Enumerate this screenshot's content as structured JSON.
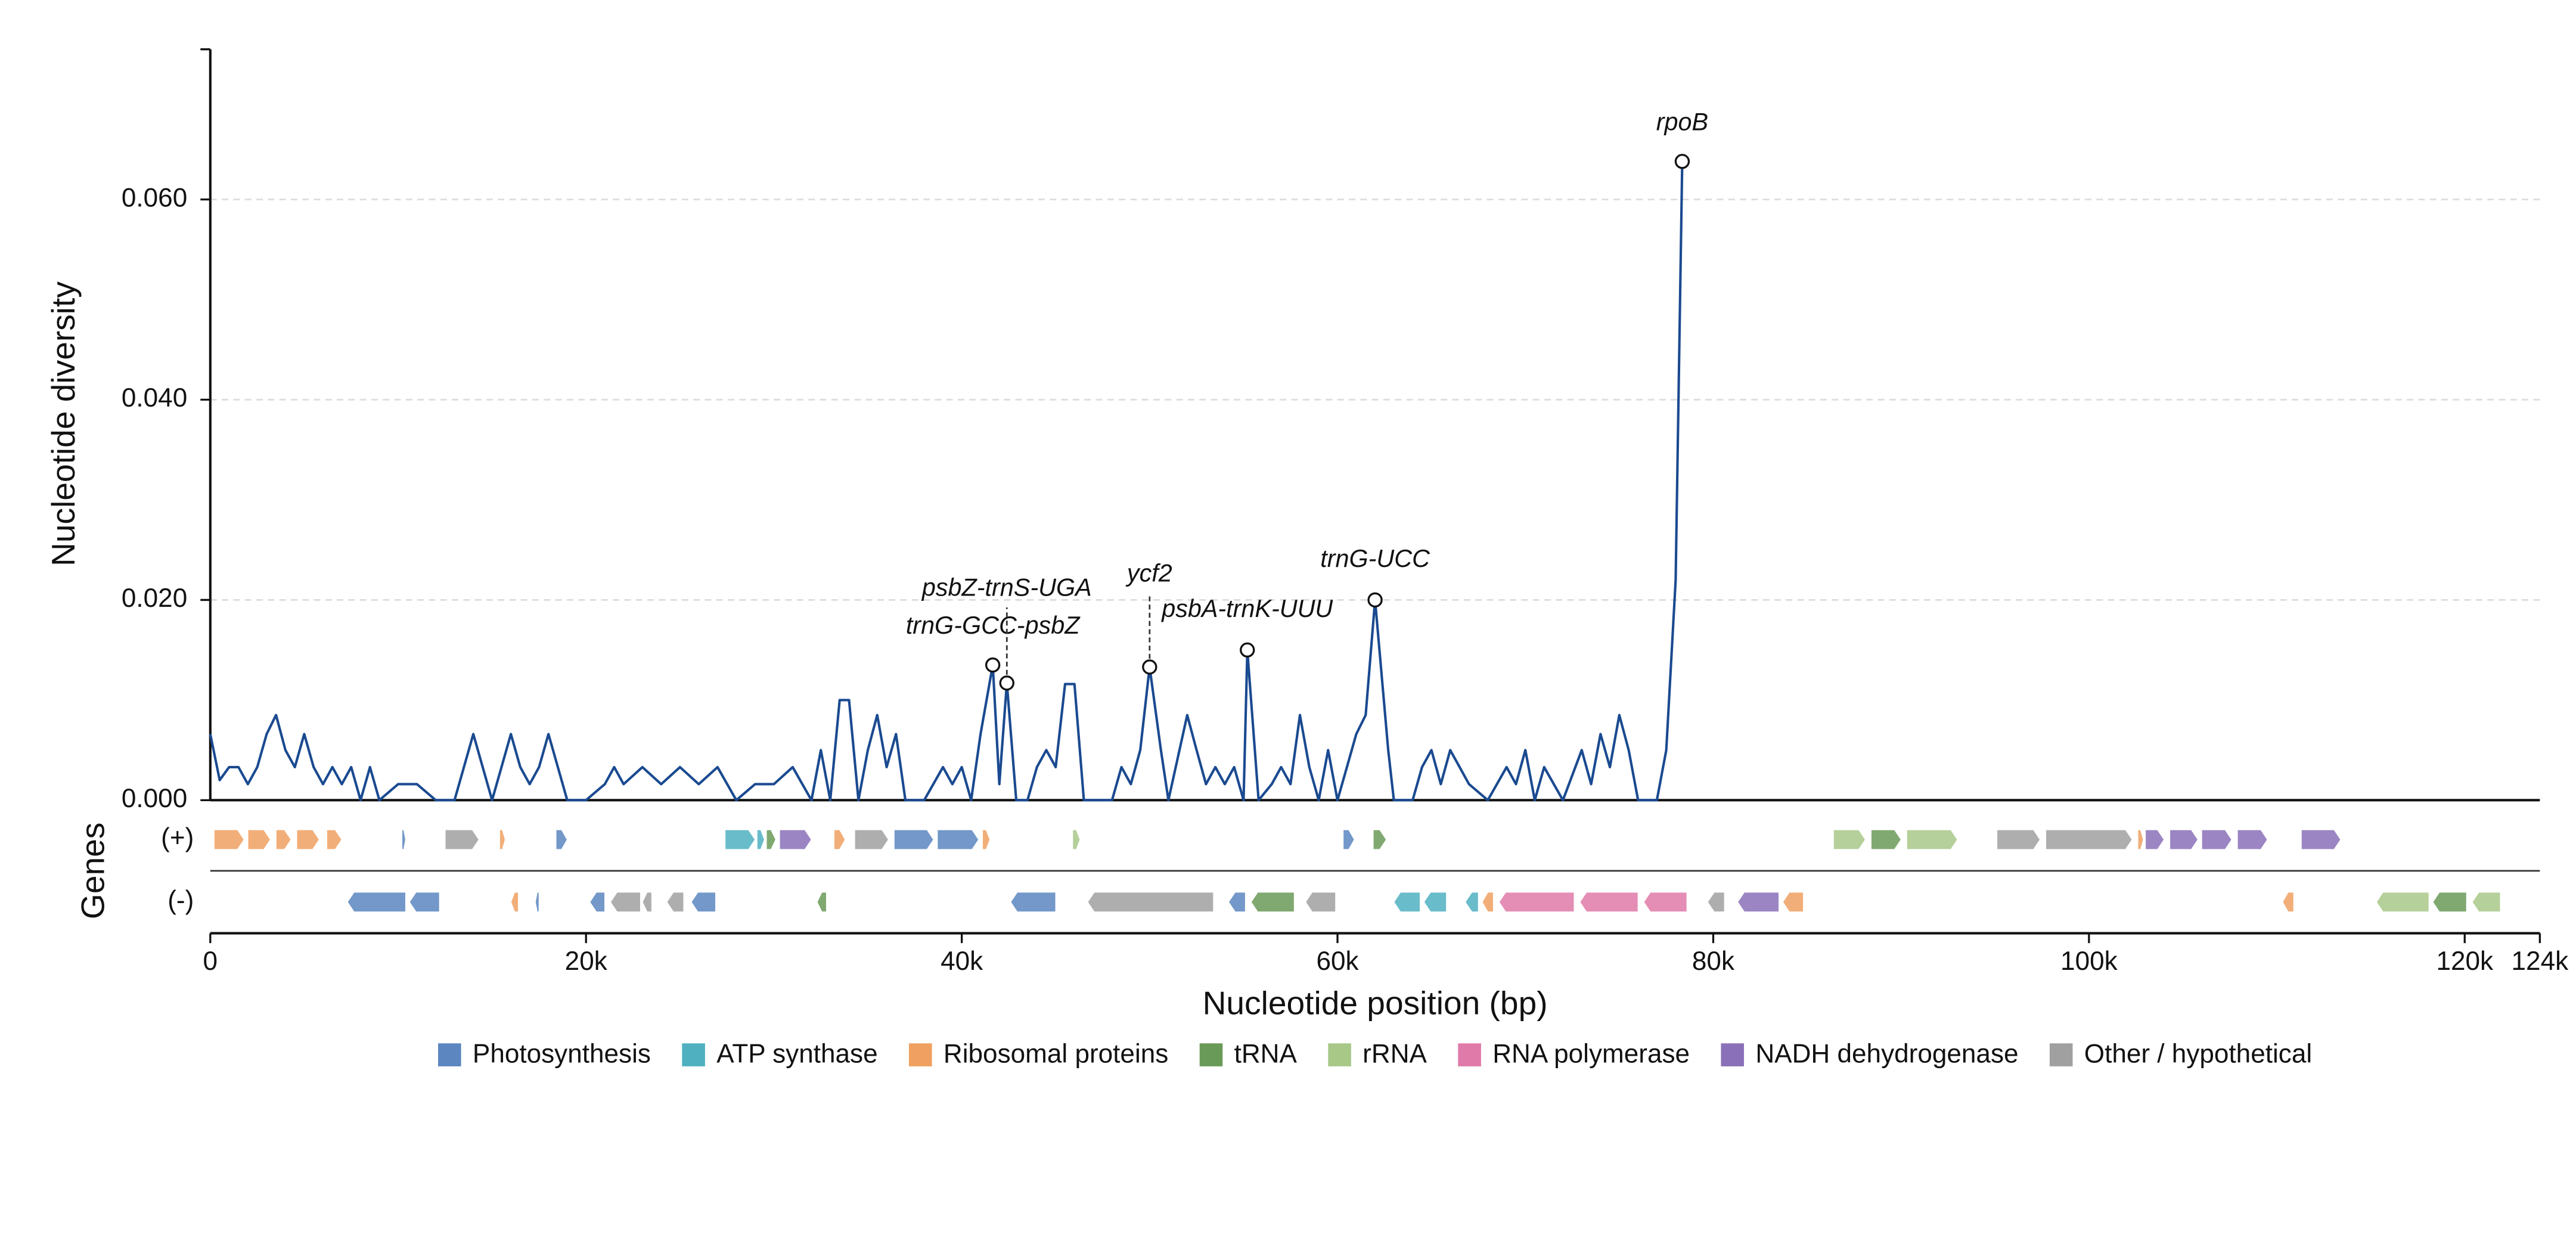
{
  "chart_data": {
    "type": "line",
    "ylabel": "Nucleotide diversity",
    "xlabel": "Nucleotide position (bp)",
    "track_title": "Genes",
    "xlim": [
      0,
      124000
    ],
    "ylim": [
      0,
      0.075
    ],
    "xticks": [
      0,
      {
        "value": 20000,
        "label": "20k"
      },
      {
        "value": 40000,
        "label": "40k"
      },
      {
        "value": 60000,
        "label": "60k"
      },
      {
        "value": 80000,
        "label": "80k"
      },
      {
        "value": 100000,
        "label": "100k"
      },
      {
        "value": 120000,
        "label": "120k"
      },
      {
        "value": 124000,
        "label": "124k"
      }
    ],
    "yticks": [
      {
        "value": 0,
        "label": "0.000"
      },
      {
        "value": 0.02,
        "label": "0.020"
      },
      {
        "value": 0.04,
        "label": "0.040"
      },
      {
        "value": 0.06,
        "label": "0.060"
      }
    ],
    "grid": true,
    "series": [
      {
        "color": "#1a4a90",
        "x": [
          0,
          500,
          1000,
          1500,
          2000,
          2500,
          3000,
          3500,
          4000,
          4500,
          5000,
          5500,
          6000,
          6500,
          7000,
          7500,
          8000,
          8500,
          9000,
          10000,
          11000,
          12000,
          13000,
          13500,
          14000,
          14500,
          15000,
          15500,
          16000,
          16500,
          17000,
          17500,
          18000,
          18500,
          19000,
          20000,
          21000,
          21500,
          22000,
          23000,
          24000,
          25000,
          26000,
          27000,
          28000,
          29000,
          30000,
          31000,
          32000,
          32500,
          33000,
          33500,
          34000,
          34500,
          35000,
          35500,
          36000,
          36500,
          37000,
          38000,
          39000,
          39500,
          40000,
          40500,
          41000,
          41650,
          42000,
          42400,
          42900,
          43500,
          44000,
          44500,
          45000,
          45500,
          46000,
          46500,
          48000,
          48500,
          49000,
          49500,
          50000,
          50600,
          51000,
          52000,
          52500,
          53000,
          53500,
          54000,
          54500,
          55000,
          55200,
          55800,
          56500,
          57000,
          57500,
          58000,
          58500,
          59000,
          59500,
          60000,
          60500,
          61000,
          61500,
          62000,
          62700,
          63000,
          64000,
          64500,
          65000,
          65500,
          66000,
          66500,
          67000,
          68000,
          69000,
          69500,
          70000,
          70500,
          71000,
          72000,
          73000,
          73500,
          74000,
          74500,
          75000,
          75500,
          76000,
          77000,
          77500,
          78000,
          78350
        ],
        "values": [
          0.0066,
          0.002,
          0.0033,
          0.0033,
          0.0016,
          0.0033,
          0.0066,
          0.0085,
          0.005,
          0.0033,
          0.0066,
          0.0033,
          0.0016,
          0.0033,
          0.0016,
          0.0033,
          0,
          0.0033,
          0,
          0.0016,
          0.0016,
          0,
          0,
          0.0033,
          0.0066,
          0.0033,
          0,
          0.0033,
          0.0066,
          0.0033,
          0.0016,
          0.0033,
          0.0066,
          0.0033,
          0,
          0,
          0.0016,
          0.0033,
          0.0016,
          0.0033,
          0.0016,
          0.0033,
          0.0016,
          0.0033,
          0,
          0.0016,
          0.0016,
          0.0033,
          0,
          0.005,
          0,
          0.01,
          0.01,
          0,
          0.005,
          0.0085,
          0.0033,
          0.0066,
          0,
          0,
          0.0033,
          0.0016,
          0.0033,
          0,
          0.0066,
          0.0135,
          0.0016,
          0.0117,
          0,
          0,
          0.0033,
          0.005,
          0.0033,
          0.0116,
          0.0116,
          0,
          0,
          0.0033,
          0.0016,
          0.005,
          0.0133,
          0.005,
          0,
          0.0085,
          0.005,
          0.0016,
          0.0033,
          0.0016,
          0.0033,
          0,
          0.015,
          0,
          0.0016,
          0.0033,
          0.0016,
          0.0085,
          0.0033,
          0,
          0.005,
          0,
          0.0033,
          0.0066,
          0.0085,
          0.02,
          0.005,
          0,
          0,
          0.0033,
          0.005,
          0.0016,
          0.005,
          0.0033,
          0.0016,
          0,
          0.0033,
          0.0016,
          0.005,
          0,
          0.0033,
          0,
          0.005,
          0.0016,
          0.0066,
          0.0033,
          0.0085,
          0.005,
          0,
          0,
          0.005,
          0.022,
          0.0638
        ]
      }
    ],
    "annotations": [
      {
        "label": "trnG-GCC-psbZ",
        "x": 41650,
        "y": 0.0135
      },
      {
        "label": "psbZ-trnS-UGA",
        "x": 42400,
        "y": 0.0117
      },
      {
        "label": "ycf2",
        "x": 50000,
        "y": 0.0133
      },
      {
        "label": "psbA-trnK-UUU",
        "x": 55200,
        "y": 0.015
      },
      {
        "label": "trnG-UCC",
        "x": 62000,
        "y": 0.02
      },
      {
        "label": "rpoB",
        "x": 78350,
        "y": 0.0638
      }
    ],
    "legend": [
      {
        "name": "Photosynthesis",
        "color": "#5b86c0"
      },
      {
        "name": "ATP synthase",
        "color": "#4fb0c0"
      },
      {
        "name": "Ribosomal proteins",
        "color": "#f0a060"
      },
      {
        "name": "tRNA",
        "color": "#6a9a58"
      },
      {
        "name": "rRNA",
        "color": "#a8c888"
      },
      {
        "name": "RNA polymerase",
        "color": "#e07aa8"
      },
      {
        "name": "NADH dehydrogenase",
        "color": "#8a70b8"
      },
      {
        "name": "Other / hypothetical",
        "color": "#a0a0a0"
      }
    ],
    "tracks": [
      {
        "label": "(+)",
        "genes": [
          {
            "start": 200,
            "end": 1800,
            "category": "Ribosomal proteins"
          },
          {
            "start": 2000,
            "end": 3200,
            "category": "Ribosomal proteins"
          },
          {
            "start": 3500,
            "end": 4300,
            "category": "Ribosomal proteins"
          },
          {
            "start": 4600,
            "end": 5800,
            "category": "Ribosomal proteins"
          },
          {
            "start": 6200,
            "end": 7000,
            "category": "Ribosomal proteins"
          },
          {
            "start": 10200,
            "end": 10400,
            "category": "Photosynthesis"
          },
          {
            "start": 12500,
            "end": 14300,
            "category": "Other / hypothetical"
          },
          {
            "start": 15400,
            "end": 15700,
            "category": "Ribosomal proteins"
          },
          {
            "start": 18400,
            "end": 19000,
            "category": "Photosynthesis"
          },
          {
            "start": 27400,
            "end": 29000,
            "category": "ATP synthase"
          },
          {
            "start": 29100,
            "end": 29500,
            "category": "ATP synthase"
          },
          {
            "start": 29600,
            "end": 30100,
            "category": "tRNA"
          },
          {
            "start": 30300,
            "end": 32000,
            "category": "NADH dehydrogenase"
          },
          {
            "start": 33200,
            "end": 33800,
            "category": "Ribosomal proteins"
          },
          {
            "start": 34300,
            "end": 36100,
            "category": "Other / hypothetical"
          },
          {
            "start": 36400,
            "end": 38500,
            "category": "Photosynthesis"
          },
          {
            "start": 38700,
            "end": 40900,
            "category": "Photosynthesis"
          },
          {
            "start": 41100,
            "end": 41500,
            "category": "Ribosomal proteins"
          },
          {
            "start": 45900,
            "end": 46300,
            "category": "rRNA"
          },
          {
            "start": 60300,
            "end": 60900,
            "category": "Photosynthesis"
          },
          {
            "start": 61900,
            "end": 62600,
            "category": "tRNA"
          },
          {
            "start": 86400,
            "end": 88100,
            "category": "rRNA"
          },
          {
            "start": 88400,
            "end": 90000,
            "category": "tRNA"
          },
          {
            "start": 90300,
            "end": 93000,
            "category": "rRNA"
          },
          {
            "start": 95100,
            "end": 97400,
            "category": "Other / hypothetical"
          },
          {
            "start": 97700,
            "end": 102300,
            "category": "Other / hypothetical"
          },
          {
            "start": 102600,
            "end": 102900,
            "category": "Ribosomal proteins"
          },
          {
            "start": 103000,
            "end": 104000,
            "category": "NADH dehydrogenase"
          },
          {
            "start": 104300,
            "end": 105800,
            "category": "NADH dehydrogenase"
          },
          {
            "start": 106000,
            "end": 107600,
            "category": "NADH dehydrogenase"
          },
          {
            "start": 107900,
            "end": 109500,
            "category": "NADH dehydrogenase"
          },
          {
            "start": 111300,
            "end": 113400,
            "category": "NADH dehydrogenase"
          }
        ]
      },
      {
        "label": "(-)",
        "genes": [
          {
            "start": 7300,
            "end": 10400,
            "category": "Photosynthesis"
          },
          {
            "start": 10600,
            "end": 12200,
            "category": "Photosynthesis"
          },
          {
            "start": 16000,
            "end": 16400,
            "category": "Ribosomal proteins"
          },
          {
            "start": 17300,
            "end": 17500,
            "category": "Photosynthesis"
          },
          {
            "start": 20200,
            "end": 21000,
            "category": "Photosynthesis"
          },
          {
            "start": 21300,
            "end": 22900,
            "category": "Other / hypothetical"
          },
          {
            "start": 23000,
            "end": 23500,
            "category": "Other / hypothetical"
          },
          {
            "start": 24300,
            "end": 25200,
            "category": "Other / hypothetical"
          },
          {
            "start": 25600,
            "end": 26900,
            "category": "Photosynthesis"
          },
          {
            "start": 32300,
            "end": 32800,
            "category": "tRNA"
          },
          {
            "start": 42600,
            "end": 45000,
            "category": "Photosynthesis"
          },
          {
            "start": 46700,
            "end": 53400,
            "category": "Other / hypothetical"
          },
          {
            "start": 54200,
            "end": 55100,
            "category": "Photosynthesis"
          },
          {
            "start": 55400,
            "end": 57700,
            "category": "tRNA"
          },
          {
            "start": 58300,
            "end": 59900,
            "category": "Other / hypothetical"
          },
          {
            "start": 63000,
            "end": 64400,
            "category": "ATP synthase"
          },
          {
            "start": 64600,
            "end": 65800,
            "category": "ATP synthase"
          },
          {
            "start": 66800,
            "end": 67500,
            "category": "ATP synthase"
          },
          {
            "start": 67700,
            "end": 68300,
            "category": "Ribosomal proteins"
          },
          {
            "start": 68600,
            "end": 72600,
            "category": "RNA polymerase"
          },
          {
            "start": 72900,
            "end": 76000,
            "category": "RNA polymerase"
          },
          {
            "start": 76300,
            "end": 78600,
            "category": "RNA polymerase"
          },
          {
            "start": 79700,
            "end": 80600,
            "category": "Other / hypothetical"
          },
          {
            "start": 81300,
            "end": 83500,
            "category": "NADH dehydrogenase"
          },
          {
            "start": 83700,
            "end": 84800,
            "category": "Ribosomal proteins"
          },
          {
            "start": 110300,
            "end": 110900,
            "category": "Ribosomal proteins"
          },
          {
            "start": 115300,
            "end": 118100,
            "category": "rRNA"
          },
          {
            "start": 118300,
            "end": 120100,
            "category": "tRNA"
          },
          {
            "start": 120400,
            "end": 121900,
            "category": "rRNA"
          }
        ]
      }
    ]
  }
}
